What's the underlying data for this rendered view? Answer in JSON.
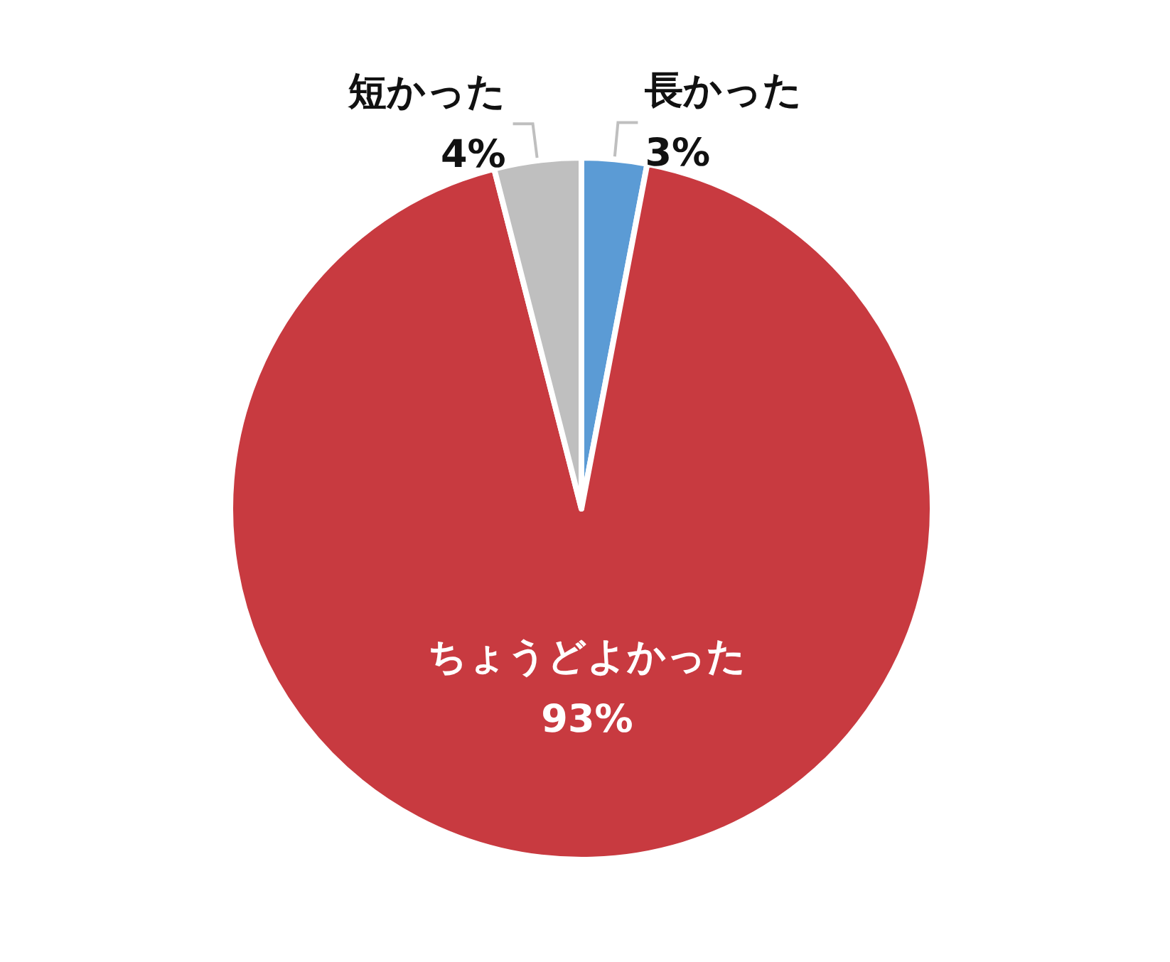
{
  "chart_data": {
    "type": "pie",
    "categories": [
      "長かった",
      "ちょうどよかった",
      "短かった"
    ],
    "values": [
      3,
      93,
      4
    ],
    "colors": [
      "#5b9bd5",
      "#c83a40",
      "#bfbfbf"
    ],
    "value_labels": [
      "3%",
      "93%",
      "4%"
    ]
  }
}
